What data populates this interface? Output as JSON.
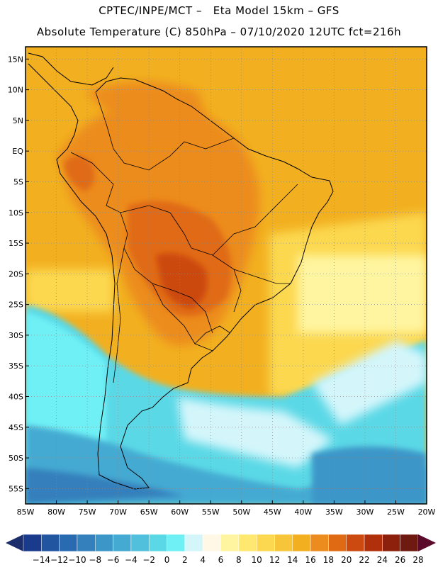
{
  "header": {
    "line1": "CPTEC/INPE/MCT –   Eta Model 15km – GFS",
    "line2": "Absolute Temperature (C) 850hPa – 07/10/2020 12UTC fct=216h"
  },
  "map": {
    "lat_labels": [
      "15N",
      "10N",
      "5N",
      "EQ",
      "5S",
      "10S",
      "15S",
      "20S",
      "25S",
      "30S",
      "35S",
      "40S",
      "45S",
      "50S",
      "55S"
    ],
    "lon_labels": [
      "85W",
      "80W",
      "75W",
      "70W",
      "65W",
      "60W",
      "55W",
      "50W",
      "45W",
      "40W",
      "35W",
      "30W",
      "25W",
      "20W"
    ],
    "lon_range": [
      -85,
      -20
    ],
    "lat_range": [
      -57.5,
      17
    ],
    "grid": "dotted"
  },
  "colorbar": {
    "labels": [
      "-14",
      "-12",
      "-10",
      "-8",
      "-6",
      "-4",
      "-2",
      "0",
      "2",
      "4",
      "6",
      "8",
      "10",
      "12",
      "14",
      "16",
      "18",
      "20",
      "22",
      "24",
      "26",
      "28"
    ],
    "colors": [
      "#1a3a8c",
      "#2255a0",
      "#2a6ab0",
      "#3480bc",
      "#3c96c8",
      "#45aad2",
      "#50c0dc",
      "#5ad8e6",
      "#6ef0f5",
      "#d4f6fb",
      "#fff8e6",
      "#fff5a0",
      "#ffe870",
      "#fcd850",
      "#f7c53a",
      "#f2b020",
      "#ec8c1e",
      "#e06a14",
      "#cc4a10",
      "#b0300c",
      "#8c200c",
      "#6e1a10"
    ]
  }
}
